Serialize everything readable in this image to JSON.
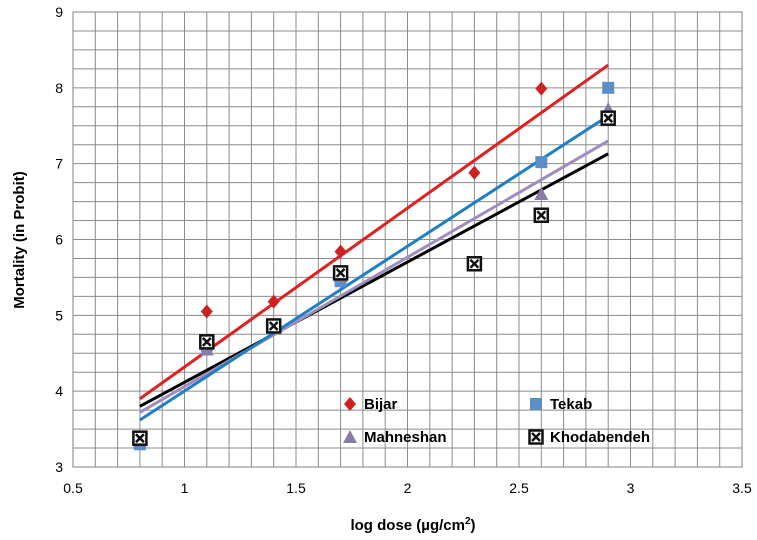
{
  "chart_data": {
    "type": "scatter",
    "xlabel_main": "log dose (µg/cm",
    "xlabel_sup": "2",
    "xlabel_end": ")",
    "ylabel": "Mortality (in Probit)",
    "xlim": [
      0.5,
      3.5
    ],
    "ylim": [
      3,
      9
    ],
    "x_ticks": [
      "0.5",
      "1",
      "1.5",
      "2",
      "2.5",
      "3",
      "3.5"
    ],
    "y_ticks": [
      "3",
      "4",
      "5",
      "6",
      "7",
      "8",
      "9"
    ],
    "grid": true,
    "legend_position": "bottom-right inside plot",
    "series": [
      {
        "name": "Bijar",
        "marker": "diamond",
        "color": "#cc2222",
        "points": [
          [
            0.8,
            3.38
          ],
          [
            1.1,
            5.05
          ],
          [
            1.4,
            5.18
          ],
          [
            1.7,
            5.84
          ],
          [
            2.3,
            6.88
          ],
          [
            2.6,
            7.99
          ]
        ],
        "trendline": [
          [
            0.8,
            3.9
          ],
          [
            2.9,
            8.3
          ]
        ]
      },
      {
        "name": "Tekab",
        "marker": "square",
        "color": "#5b8ec4",
        "points": [
          [
            0.8,
            3.3
          ],
          [
            1.1,
            4.6
          ],
          [
            1.4,
            4.85
          ],
          [
            1.7,
            5.45
          ],
          [
            2.3,
            5.68
          ],
          [
            2.6,
            7.02
          ],
          [
            2.9,
            8.0
          ]
        ],
        "trendline": [
          [
            0.8,
            3.62
          ],
          [
            2.9,
            7.63
          ]
        ]
      },
      {
        "name": "Mahneshan",
        "marker": "triangle",
        "color": "#8a7aa8",
        "points": [
          [
            0.8,
            3.35
          ],
          [
            1.1,
            4.55
          ],
          [
            1.4,
            4.86
          ],
          [
            1.7,
            5.52
          ],
          [
            2.3,
            5.68
          ],
          [
            2.6,
            6.6
          ],
          [
            2.9,
            7.72
          ]
        ],
        "trendline": [
          [
            0.8,
            3.72
          ],
          [
            2.9,
            7.3
          ]
        ]
      },
      {
        "name": "Khodabendeh",
        "marker": "boxed-x",
        "color": "#111111",
        "points": [
          [
            0.8,
            3.38
          ],
          [
            1.1,
            4.65
          ],
          [
            1.4,
            4.86
          ],
          [
            1.7,
            5.56
          ],
          [
            2.3,
            5.68
          ],
          [
            2.6,
            6.32
          ],
          [
            2.9,
            7.6
          ]
        ],
        "trendline": [
          [
            0.8,
            3.8
          ],
          [
            2.9,
            7.13
          ]
        ]
      }
    ],
    "trendline_colors": {
      "Bijar": "#e02020",
      "Tekab": "#1f7fc4",
      "Mahneshan": "#a08cc0",
      "Khodabendeh": "#000000"
    }
  }
}
